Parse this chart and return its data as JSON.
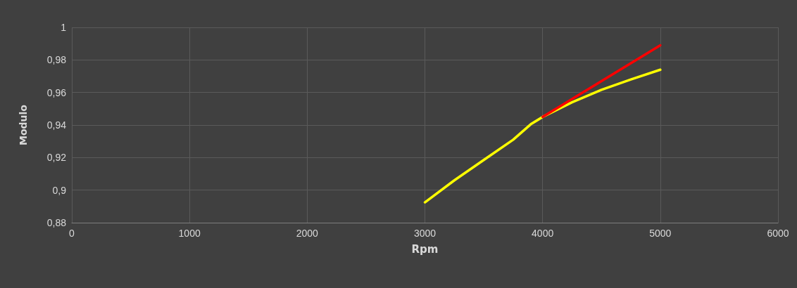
{
  "chart_data": {
    "type": "line",
    "xlabel": "Rpm",
    "ylabel": "Modulo",
    "series": [
      {
        "color": "#ffff00",
        "x": [
          3000,
          3250,
          3500,
          3750,
          3900,
          4000,
          4250,
          4500,
          4750,
          5000
        ],
        "values": [
          0.8925,
          0.906,
          0.9185,
          0.931,
          0.9405,
          0.945,
          0.954,
          0.9616,
          0.968,
          0.974
        ]
      },
      {
        "color": "#ff0000",
        "x": [
          4000,
          4500,
          5000
        ],
        "values": [
          0.945,
          0.967,
          0.989
        ]
      }
    ],
    "xlim": [
      0,
      6000
    ],
    "xticks": [
      0,
      1000,
      2000,
      3000,
      4000,
      5000,
      6000
    ],
    "ylim": [
      0.88,
      1
    ],
    "yticks": [
      {
        "value": 0.88,
        "label": "0,88"
      },
      {
        "value": 0.9,
        "label": "0,9"
      },
      {
        "value": 0.92,
        "label": "0,92"
      },
      {
        "value": 0.94,
        "label": "0,94"
      },
      {
        "value": 0.96,
        "label": "0,96"
      },
      {
        "value": 0.98,
        "label": "0,98"
      },
      {
        "value": 1,
        "label": "1"
      }
    ],
    "grid": true,
    "marker": "none",
    "line_style": "solid"
  }
}
